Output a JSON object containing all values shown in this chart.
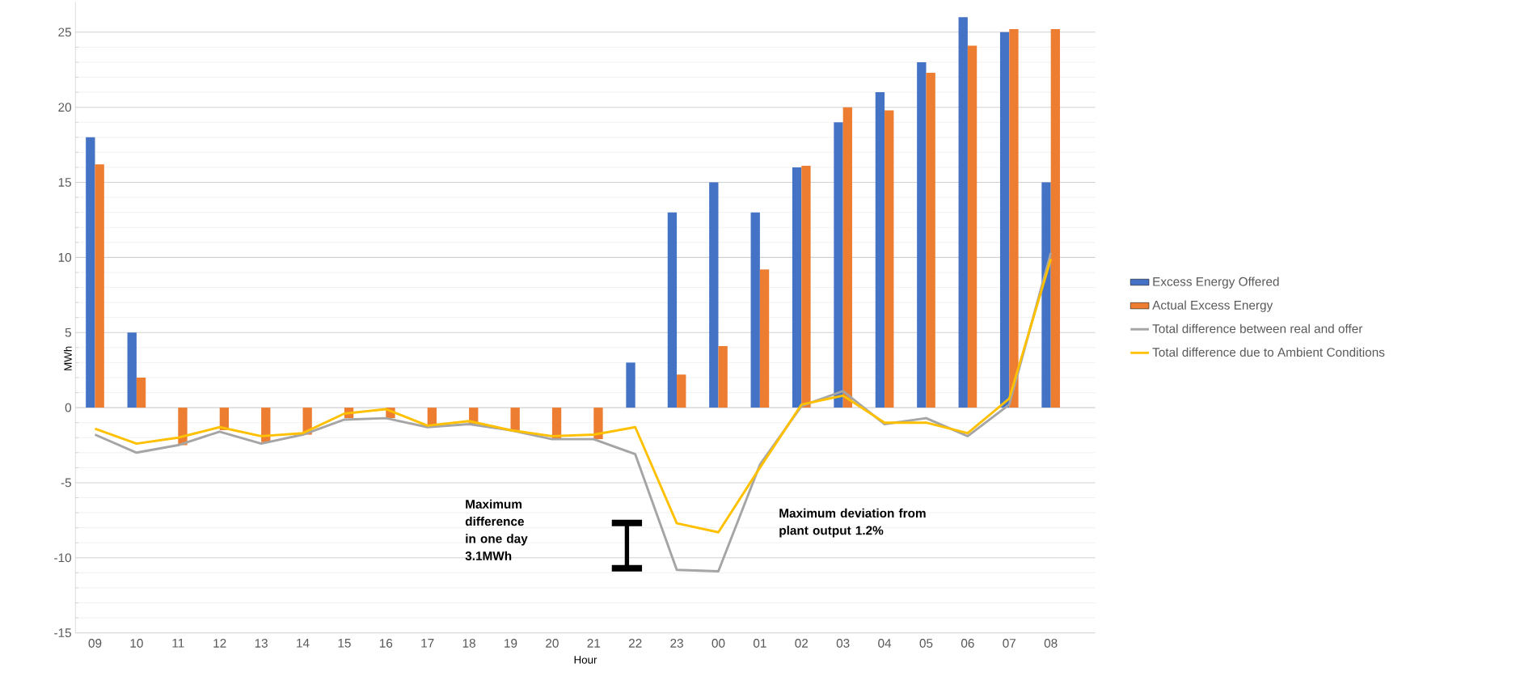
{
  "chart_data": {
    "type": "bar",
    "xlabel": "Hour",
    "ylabel": "MWh",
    "categories": [
      "09",
      "10",
      "11",
      "12",
      "13",
      "14",
      "15",
      "16",
      "17",
      "18",
      "19",
      "20",
      "21",
      "22",
      "23",
      "00",
      "01",
      "02",
      "03",
      "04",
      "05",
      "06",
      "07",
      "08"
    ],
    "series": [
      {
        "name": "Excess Energy Offered",
        "color": "#4472c4",
        "values": [
          18,
          5,
          0,
          0,
          0,
          0,
          0,
          0,
          0,
          0,
          0,
          0,
          0,
          3,
          13,
          15,
          13,
          16,
          19,
          21,
          23,
          26,
          25,
          15
        ]
      },
      {
        "name": "Actual Excess Energy",
        "color": "#ed7d31",
        "values": [
          16.2,
          2,
          -2.5,
          -1.5,
          -2.3,
          -1.8,
          -0.7,
          -0.7,
          -1.3,
          -1.1,
          -1.5,
          -2.1,
          -2.1,
          0,
          2.2,
          4.1,
          9.2,
          16.1,
          20,
          19.8,
          22.3,
          24.1,
          25.2,
          25.2
        ]
      },
      {
        "name": "Total difference between real and offer",
        "type": "line",
        "color": "#a5a5a5",
        "values": [
          -1.8,
          -3,
          -2.5,
          -1.6,
          -2.4,
          -1.8,
          -0.8,
          -0.7,
          -1.3,
          -1.1,
          -1.5,
          -2.1,
          -2.1,
          -3.1,
          -10.8,
          -10.9,
          -3.8,
          0.1,
          1.1,
          -1.1,
          -0.7,
          -1.9,
          0.2,
          10.3
        ]
      },
      {
        "name": "Total difference due to Ambient Conditions",
        "type": "line",
        "color": "#ffc000",
        "values": [
          -1.4,
          -2.4,
          -2,
          -1.3,
          -1.9,
          -1.7,
          -0.4,
          -0.1,
          -1.2,
          -0.9,
          -1.5,
          -1.9,
          -1.8,
          -1.3,
          -7.7,
          -8.3,
          -4,
          0.2,
          0.8,
          -1,
          -1,
          -1.7,
          0.6,
          9.9
        ]
      }
    ],
    "ylim": [
      -15,
      27
    ],
    "yticks": [
      -15,
      -10,
      -5,
      0,
      5,
      10,
      15,
      20,
      25
    ],
    "grid": "y",
    "legend": "right",
    "annotations": [
      "Maximum difference in one day 3.1MWh",
      "Maximum deviation from plant output 1.2%"
    ]
  }
}
